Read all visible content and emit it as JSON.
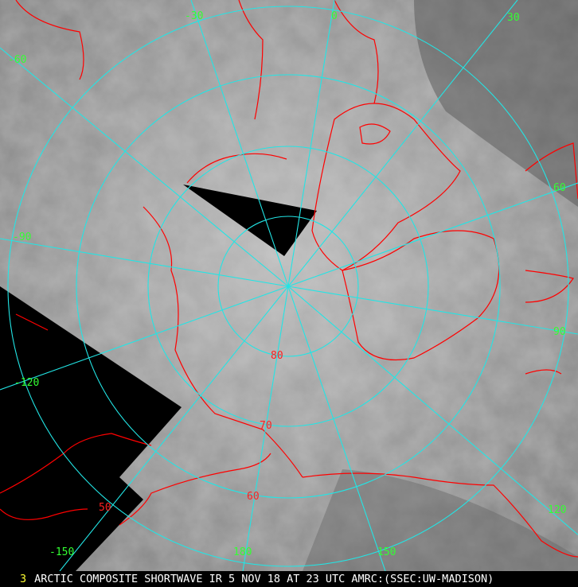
{
  "caption": {
    "frame_number": "3",
    "text": "ARCTIC COMPOSITE SHORTWAVE IR 5 NOV 18 AT 23 UTC AMRC:(SSEC:UW-MADISON)"
  },
  "colors": {
    "graticule": "#22e5e5",
    "coastline": "#ff0000",
    "longitude_labels": "#33ff33",
    "latitude_labels": "#ff2020",
    "no_data": "#000000"
  },
  "longitude_labels": [
    "-30",
    "0",
    "30",
    "60",
    "90",
    "120",
    "150",
    "180",
    "-150",
    "-120",
    "-90",
    "-60"
  ],
  "latitude_labels": [
    "80",
    "70",
    "60",
    "50"
  ]
}
